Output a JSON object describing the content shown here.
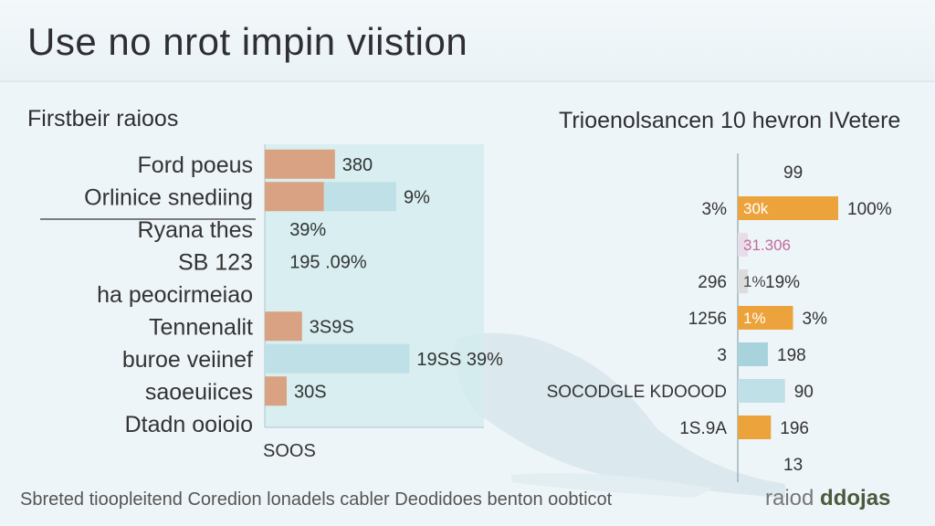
{
  "header": {
    "title": "Use no nrot impin viistion"
  },
  "colors": {
    "bar_peach": "#d9a283",
    "bar_teal": "#bfe0e6",
    "bar_orange": "#eda33c",
    "bar_gray": "#dcdcdc",
    "label_pink": "#c26a9d"
  },
  "chart_data": [
    {
      "type": "bar",
      "orientation": "horizontal",
      "title": "Firstbeir raioos",
      "categories": [
        "Ford poeus",
        "Orlinice snediing",
        "Ryana thes",
        "SB 123",
        "ha peocirmeiao",
        "Tennenalit",
        "buroe veiinef",
        "saoeuiices",
        "Dtadn ooioio"
      ],
      "value_labels": [
        "380",
        "9%",
        "39%",
        "195 .09%",
        "",
        "3S9S",
        "19SS 39%",
        "30S",
        ""
      ],
      "series": [
        {
          "name": "",
          "values": [
            0.32,
            0.27,
            0.0,
            0.0,
            0.0,
            0.17,
            0.0,
            0.1,
            0.0
          ],
          "color": "#d9a283"
        },
        {
          "name": "",
          "values": [
            0.0,
            0.33,
            0.0,
            0.0,
            0.0,
            0.0,
            0.66,
            0.0,
            0.0
          ],
          "color": "#bfe0e6"
        }
      ],
      "x_tick_label": "SOOS",
      "grid": false
    },
    {
      "type": "bar",
      "orientation": "horizontal",
      "title": "Trioenolsancen 10 hevron IVetere",
      "rows": [
        {
          "left": "",
          "bar_label": "",
          "right": "99",
          "value": 0,
          "color": ""
        },
        {
          "left": "3%",
          "bar_label": "30k",
          "right": "100%",
          "value": 1.0,
          "color": "#eda33c"
        },
        {
          "left": "",
          "bar_label": "31.306",
          "right": "",
          "value": 0.1,
          "color": "#e8dce8"
        },
        {
          "left": "296",
          "bar_label": "1%",
          "right": "19%",
          "value": 0.1,
          "color": "#dcdcdc"
        },
        {
          "left": "1256",
          "bar_label": "1%",
          "right": "3%",
          "value": 0.55,
          "color": "#eda33c"
        },
        {
          "left": "3",
          "bar_label": "",
          "right": "198",
          "value": 0.3,
          "color": "#a9d3dc"
        },
        {
          "left": "SOCODGLE KDOOOD",
          "bar_label": "",
          "right": "90",
          "value": 0.47,
          "color": "#bfe0e6"
        },
        {
          "left": "1S.9A",
          "bar_label": "",
          "right": "196",
          "value": 0.33,
          "color": "#eda33c"
        },
        {
          "left": "",
          "bar_label": "",
          "right": "13",
          "value": 0,
          "color": ""
        }
      ],
      "grid": false
    }
  ],
  "footer": {
    "note": "Sbreted tioopleitend Coredion lonadels cabler Deodidoes benton oobticot"
  },
  "brand": {
    "prefix": "raiod",
    "name": "ddojas"
  }
}
